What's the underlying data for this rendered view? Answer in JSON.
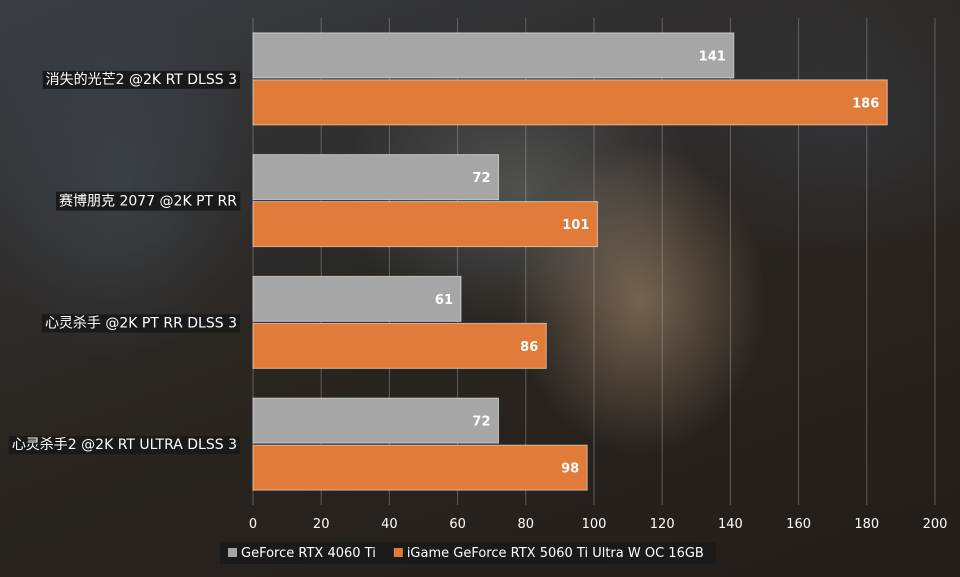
{
  "chart_data": {
    "type": "bar",
    "orientation": "horizontal",
    "categories": [
      "消失的光芒2 @2K RT DLSS 3",
      "赛博朋克 2077 @2K PT RR",
      "心灵杀手 @2K PT RR DLSS 3",
      "心灵杀手2 @2K RT ULTRA DLSS 3"
    ],
    "series": [
      {
        "name": "GeForce RTX 4060 Ti",
        "values": [
          141,
          72,
          61,
          72
        ],
        "color": "#a6a6a6"
      },
      {
        "name": "iGame GeForce RTX 5060 Ti Ultra W OC 16GB",
        "values": [
          186,
          101,
          86,
          98
        ],
        "color": "#e07b39"
      }
    ],
    "xlim": [
      0,
      200
    ],
    "xticks": [
      0,
      20,
      40,
      60,
      80,
      100,
      120,
      140,
      160,
      180,
      200
    ],
    "grid": true,
    "legend_position": "bottom",
    "data_labels": true
  }
}
